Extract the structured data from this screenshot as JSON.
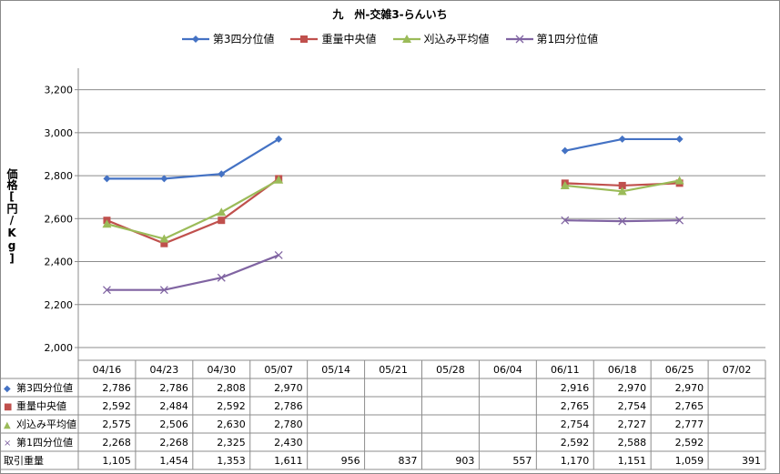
{
  "chart_data": {
    "type": "line",
    "title": "九　州-交雑3-らんいち",
    "ylabel": "価格[円/Kg]",
    "ylim": [
      2000,
      3300
    ],
    "yticks": [
      "2,000",
      "2,200",
      "2,400",
      "2,600",
      "2,800",
      "3,000",
      "3,200"
    ],
    "grid": true,
    "legend_position": "top",
    "categories": [
      "04/16",
      "04/23",
      "04/30",
      "05/07",
      "05/14",
      "05/21",
      "05/28",
      "06/04",
      "06/11",
      "06/18",
      "06/25",
      "07/02"
    ],
    "series": [
      {
        "name": "第3四分位値",
        "color": "#4472C4",
        "marker": "diamond",
        "marker_glyph": "◆",
        "values": [
          2786,
          2786,
          2808,
          2970,
          null,
          null,
          null,
          null,
          2916,
          2970,
          2970,
          null
        ],
        "labels": [
          "2,786",
          "2,786",
          "2,808",
          "2,970",
          "",
          "",
          "",
          "",
          "2,916",
          "2,970",
          "2,970",
          ""
        ]
      },
      {
        "name": "重量中央値",
        "color": "#C0504D",
        "marker": "square",
        "marker_glyph": "■",
        "values": [
          2592,
          2484,
          2592,
          2786,
          null,
          null,
          null,
          null,
          2765,
          2754,
          2765,
          null
        ],
        "labels": [
          "2,592",
          "2,484",
          "2,592",
          "2,786",
          "",
          "",
          "",
          "",
          "2,765",
          "2,754",
          "2,765",
          ""
        ]
      },
      {
        "name": "刈込み平均値",
        "color": "#9BBB59",
        "marker": "triangle",
        "marker_glyph": "▲",
        "values": [
          2575,
          2506,
          2630,
          2780,
          null,
          null,
          null,
          null,
          2754,
          2727,
          2777,
          null
        ],
        "labels": [
          "2,575",
          "2,506",
          "2,630",
          "2,780",
          "",
          "",
          "",
          "",
          "2,754",
          "2,727",
          "2,777",
          ""
        ]
      },
      {
        "name": "第1四分位値",
        "color": "#8064A2",
        "marker": "x",
        "marker_glyph": "×",
        "values": [
          2268,
          2268,
          2325,
          2430,
          null,
          null,
          null,
          null,
          2592,
          2588,
          2592,
          null
        ],
        "labels": [
          "2,268",
          "2,268",
          "2,325",
          "2,430",
          "",
          "",
          "",
          "",
          "2,592",
          "2,588",
          "2,592",
          ""
        ]
      }
    ],
    "volume_row": {
      "name": "取引重量",
      "labels": [
        "1,105",
        "1,454",
        "1,353",
        "1,611",
        "956",
        "837",
        "903",
        "557",
        "1,170",
        "1,151",
        "1,059",
        "391"
      ]
    }
  }
}
